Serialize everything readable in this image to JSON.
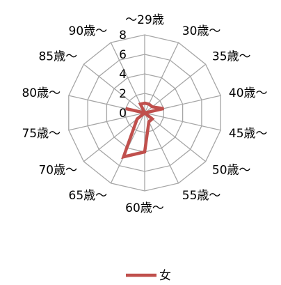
{
  "chart_data": {
    "type": "radar",
    "title": "",
    "categories": [
      "～29歳",
      "30歳～",
      "35歳～",
      "40歳～",
      "45歳～",
      "50歳～",
      "55歳～",
      "60歳～",
      "65歳～",
      "70歳～",
      "75歳～",
      "80歳～",
      "85歳～",
      "90歳～"
    ],
    "ticks": [
      "0",
      "2",
      "4",
      "6",
      "8"
    ],
    "rlim": [
      0,
      8
    ],
    "grid": true,
    "legend_position": "bottom",
    "series": [
      {
        "name": "女",
        "color": "#c0504d",
        "values": [
          1,
          1,
          1,
          2,
          0,
          1,
          1,
          4,
          5,
          1,
          0,
          2,
          0,
          1
        ]
      }
    ]
  }
}
